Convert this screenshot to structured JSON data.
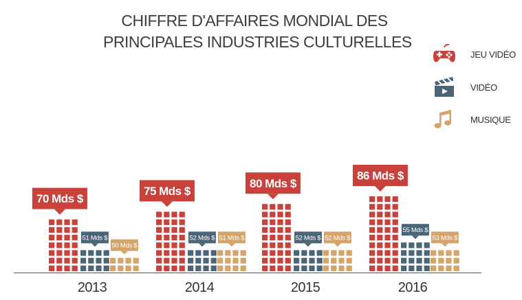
{
  "title_lines": [
    "CHIFFRE D'AFFAIRES MONDIAL DES",
    "PRINCIPALES INDUSTRIES CULTURELLES"
  ],
  "legend": [
    {
      "label": "JEU VIDÉO",
      "icon": "gamepad-icon",
      "color": "#c8413b"
    },
    {
      "label": "VIDÉO",
      "icon": "clapperboard-icon",
      "color": "#4a6577"
    },
    {
      "label": "MUSIQUE",
      "icon": "music-note-icon",
      "color": "#d4a46a"
    }
  ],
  "chart_data": {
    "type": "bar",
    "categories": [
      "2013",
      "2014",
      "2015",
      "2016"
    ],
    "series": [
      {
        "name": "JEU VIDÉO",
        "color": "#c8413b",
        "values": [
          70,
          75,
          80,
          86
        ],
        "labels": [
          "70 Mds $",
          "75 Mds $",
          "80 Mds $",
          "86 Mds $"
        ]
      },
      {
        "name": "VIDÉO",
        "color": "#4a6577",
        "values": [
          51,
          52,
          52,
          55
        ],
        "labels": [
          "51 Mds $",
          "52 Mds $",
          "52 Mds $",
          "55 Mds $"
        ]
      },
      {
        "name": "MUSIQUE",
        "color": "#d4a46a",
        "values": [
          50,
          51,
          52,
          53
        ],
        "labels": [
          "50 Mds $",
          "51 Mds $",
          "52 Mds $",
          "53 Mds $"
        ]
      }
    ]
  }
}
